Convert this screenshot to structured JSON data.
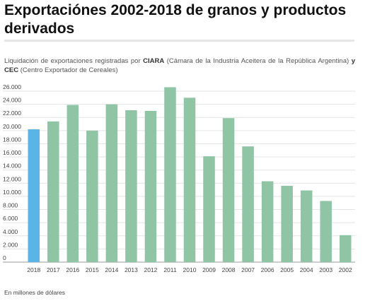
{
  "title": "Exportaciónes 2002-2018 de granos y productos derivados",
  "subtitle": {
    "prefix": "Liquidación de exportaciones registradas por",
    "org1": "CIARA",
    "org1_desc": "(Cámara de la Industria Aceitera de la República Argentina)",
    "joiner": "y",
    "org2": "CEC",
    "org2_desc": "(Centro Exportador de Cereales)"
  },
  "footnote": "En millones de dólares",
  "chart_data": {
    "type": "bar",
    "categories": [
      "2018",
      "2017",
      "2016",
      "2015",
      "2014",
      "2013",
      "2012",
      "2011",
      "2010",
      "2009",
      "2008",
      "2007",
      "2006",
      "2005",
      "2004",
      "2003",
      "2002"
    ],
    "values": [
      20200,
      21400,
      23900,
      20000,
      24000,
      23100,
      23000,
      26600,
      25000,
      16100,
      21900,
      17600,
      12300,
      11600,
      10900,
      9300,
      4100
    ],
    "highlight_index": 0,
    "ylim": [
      0,
      26000
    ],
    "yticks": [
      0,
      2000,
      4000,
      6000,
      8000,
      10000,
      12000,
      14000,
      16000,
      18000,
      20000,
      22000,
      24000,
      26000
    ],
    "ytick_labels": [
      "0",
      "2.000",
      "4.000",
      "6.000",
      "8.000",
      "10.000",
      "12.000",
      "14.000",
      "16.000",
      "18.000",
      "20.000",
      "22.000",
      "24.000",
      "26.000"
    ],
    "colors": {
      "highlight": "#5ab4e5",
      "default": "#8fc4a5",
      "grid": "#e3e3e3",
      "axis": "#999999"
    },
    "grid": true
  }
}
